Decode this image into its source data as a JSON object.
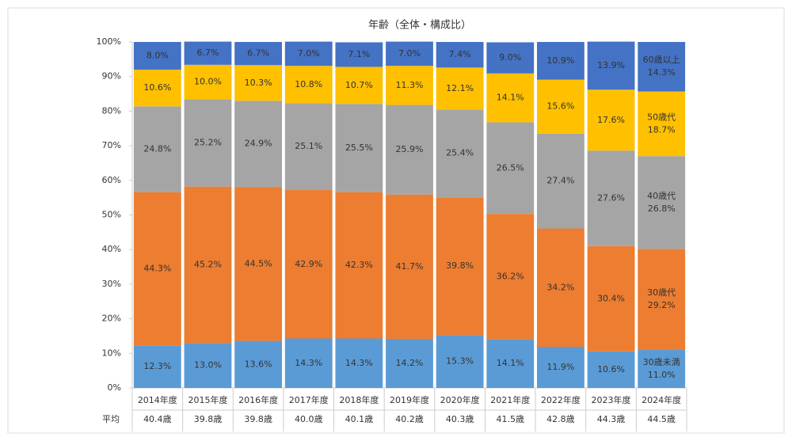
{
  "chart_data": {
    "type": "stacked-bar",
    "title": "年齢（全体・構成比）",
    "categories": [
      "2014年度",
      "2015年度",
      "2016年度",
      "2017年度",
      "2018年度",
      "2019年度",
      "2020年度",
      "2021年度",
      "2022年度",
      "2023年度",
      "2024年度"
    ],
    "series": [
      {
        "name": "30歳未満",
        "color": "#5b9bd5",
        "values": [
          12.3,
          13.0,
          13.6,
          14.3,
          14.3,
          14.2,
          15.3,
          14.1,
          11.9,
          10.6,
          11.0
        ],
        "value_labels": [
          "12.3%",
          "13.0%",
          "13.6%",
          "14.3%",
          "14.3%",
          "14.2%",
          "15.3%",
          "14.1%",
          "11.9%",
          "10.6%",
          "11.0%"
        ]
      },
      {
        "name": "30歳代",
        "color": "#ed7d31",
        "values": [
          44.3,
          45.2,
          44.5,
          42.9,
          42.3,
          41.7,
          39.8,
          36.2,
          34.2,
          30.4,
          29.2
        ],
        "value_labels": [
          "44.3%",
          "45.2%",
          "44.5%",
          "42.9%",
          "42.3%",
          "41.7%",
          "39.8%",
          "36.2%",
          "34.2%",
          "30.4%",
          "29.2%"
        ]
      },
      {
        "name": "40歳代",
        "color": "#a5a5a5",
        "values": [
          24.8,
          25.2,
          24.9,
          25.1,
          25.5,
          25.9,
          25.4,
          26.5,
          27.4,
          27.6,
          26.8
        ],
        "value_labels": [
          "24.8%",
          "25.2%",
          "24.9%",
          "25.1%",
          "25.5%",
          "25.9%",
          "25.4%",
          "26.5%",
          "27.4%",
          "27.6%",
          "26.8%"
        ]
      },
      {
        "name": "50歳代",
        "color": "#ffc000",
        "values": [
          10.6,
          10.0,
          10.3,
          10.8,
          10.7,
          11.3,
          12.1,
          14.1,
          15.6,
          17.6,
          18.7
        ],
        "value_labels": [
          "10.6%",
          "10.0%",
          "10.3%",
          "10.8%",
          "10.7%",
          "11.3%",
          "12.1%",
          "14.1%",
          "15.6%",
          "17.6%",
          "18.7%"
        ]
      },
      {
        "name": "60歳以上",
        "color": "#4472c4",
        "values": [
          8.0,
          6.7,
          6.7,
          7.0,
          7.1,
          7.0,
          7.4,
          9.0,
          10.9,
          13.9,
          14.3
        ],
        "value_labels": [
          "8.0%",
          "6.7%",
          "6.7%",
          "7.0%",
          "7.1%",
          "7.0%",
          "7.4%",
          "9.0%",
          "10.9%",
          "13.9%",
          "14.3%"
        ]
      }
    ],
    "ylim": [
      0,
      100
    ],
    "yticks": [
      {
        "value": 0,
        "label": "0%"
      },
      {
        "value": 10,
        "label": "10%"
      },
      {
        "value": 20,
        "label": "20%"
      },
      {
        "value": 30,
        "label": "30%"
      },
      {
        "value": 40,
        "label": "40%"
      },
      {
        "value": 50,
        "label": "50%"
      },
      {
        "value": 60,
        "label": "60%"
      },
      {
        "value": 70,
        "label": "70%"
      },
      {
        "value": 80,
        "label": "80%"
      },
      {
        "value": 90,
        "label": "90%"
      },
      {
        "value": 100,
        "label": "100%"
      }
    ],
    "table": {
      "label": "平均",
      "values": [
        "40.4歳",
        "39.8歳",
        "39.8歳",
        "40.0歳",
        "40.1歳",
        "40.2歳",
        "40.3歳",
        "41.5歳",
        "42.8歳",
        "44.3歳",
        "44.5歳"
      ]
    }
  }
}
